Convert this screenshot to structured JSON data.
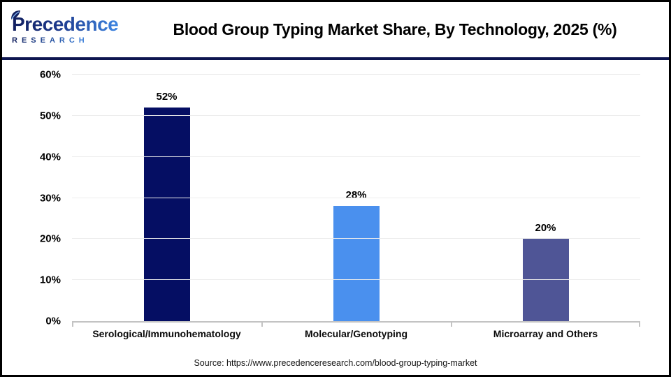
{
  "header": {
    "title": "Blood Group Typing Market Share, By Technology, 2025 (%)",
    "brand": {
      "name": "Precedence",
      "subtitle": "RESEARCH"
    }
  },
  "chart_data": {
    "type": "bar",
    "title": "Blood Group Typing Market Share, By Technology, 2025 (%)",
    "categories": [
      "Serological/Immunohematology",
      "Molecular/Genotyping",
      "Microarray and Others"
    ],
    "values": [
      52,
      28,
      20
    ],
    "value_labels": [
      "52%",
      "28%",
      "20%"
    ],
    "bar_colors": [
      "#050e63",
      "#4a90ee",
      "#4f5596"
    ],
    "xlabel": "",
    "ylabel": "",
    "ylim": [
      0,
      60
    ],
    "y_ticks": [
      0,
      10,
      20,
      30,
      40,
      50,
      60
    ],
    "y_tick_suffix": "%",
    "grid": true,
    "legend": false
  },
  "footer": {
    "source": "Source: https://www.precedenceresearch.com/blood-group-typing-market"
  },
  "colors": {
    "header_rule": "#0e1650",
    "brand_dark": "#121f5e",
    "brand_light": "#3e86e2",
    "gridline": "#ececec",
    "axis": "#c3c3c3"
  }
}
